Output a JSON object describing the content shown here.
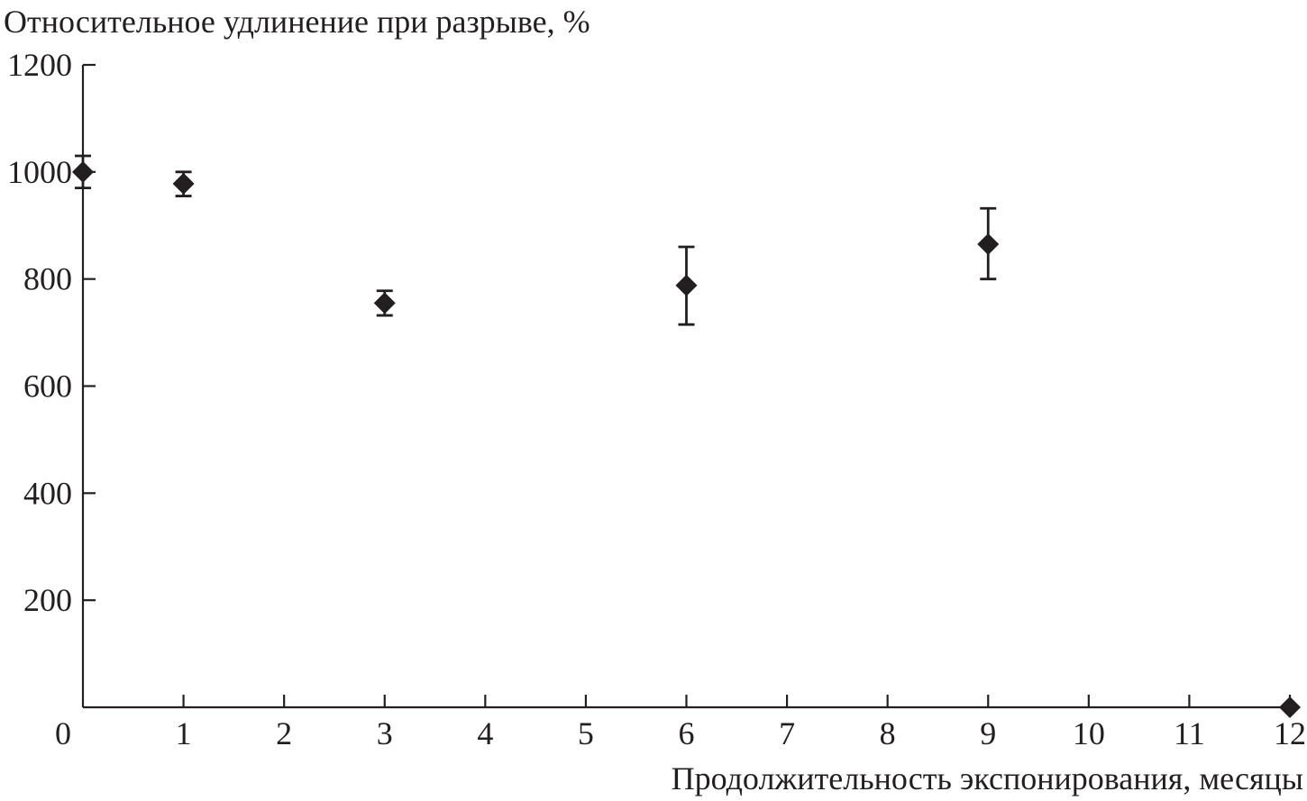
{
  "chart_data": {
    "type": "scatter",
    "title": "Относительное удлинение при разрыве, %",
    "xlabel": "Продолжительность экспонирования, месяцы",
    "ylabel": "Относительное удлинение при разрыве, %",
    "xlim": [
      0,
      12
    ],
    "ylim": [
      0,
      1200
    ],
    "x_ticks": [
      0,
      1,
      2,
      3,
      4,
      5,
      6,
      7,
      8,
      9,
      10,
      11,
      12
    ],
    "y_ticks": [
      200,
      400,
      600,
      800,
      1000,
      1200
    ],
    "grid": false,
    "marker": "diamond",
    "color": "#231f20",
    "points": [
      {
        "x": 0,
        "y": 1000,
        "err_low": 970,
        "err_high": 1030
      },
      {
        "x": 1,
        "y": 978,
        "err_low": 955,
        "err_high": 1000
      },
      {
        "x": 3,
        "y": 755,
        "err_low": 732,
        "err_high": 778
      },
      {
        "x": 6,
        "y": 788,
        "err_low": 715,
        "err_high": 860
      },
      {
        "x": 9,
        "y": 865,
        "err_low": 800,
        "err_high": 932
      },
      {
        "x": 12,
        "y": 0
      }
    ]
  }
}
